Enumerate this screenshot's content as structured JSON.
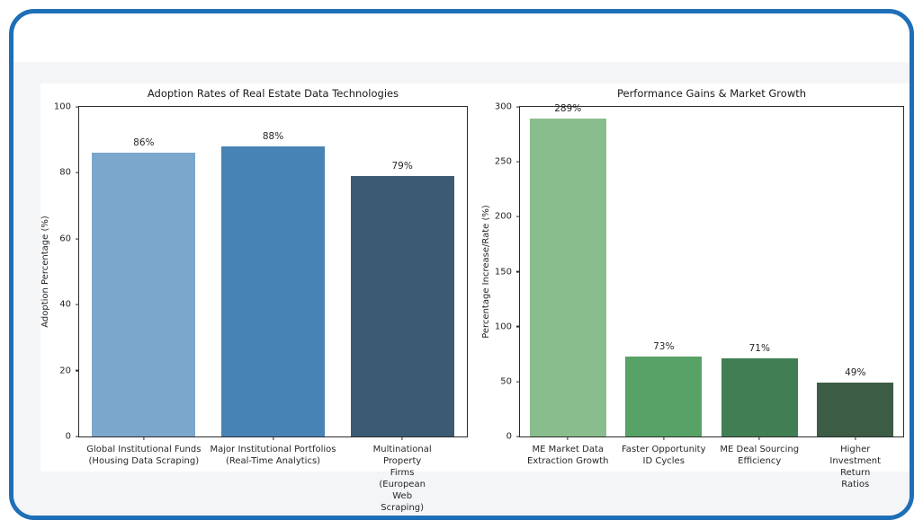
{
  "frame": {
    "border_color": "#1e6fb7",
    "panel_bg": "#f3f5f7",
    "figure_bg": "#ffffff"
  },
  "chart_data": [
    {
      "type": "bar",
      "title": "Adoption Rates of Real Estate Data Technologies",
      "xlabel": "",
      "ylabel": "Adoption Percentage (%)",
      "ylim": [
        0,
        100
      ],
      "yticks": [
        0,
        20,
        40,
        60,
        80,
        100
      ],
      "grid": false,
      "legend": false,
      "categories": [
        "Global Institutional Funds\n(Housing Data Scraping)",
        "Major Institutional Portfolios\n(Real-Time Analytics)",
        "Multinational Property Firms\n(European Web Scraping)"
      ],
      "values": [
        86,
        88,
        79
      ],
      "bar_labels": [
        "86%",
        "88%",
        "79%"
      ],
      "bar_colors": [
        "#7ba7cc",
        "#4784b5",
        "#3c5a72"
      ]
    },
    {
      "type": "bar",
      "title": "Performance Gains & Market Growth",
      "xlabel": "",
      "ylabel": "Percentage Increase/Rate (%)",
      "ylim": [
        0,
        300
      ],
      "yticks": [
        0,
        50,
        100,
        150,
        200,
        250,
        300
      ],
      "grid": false,
      "legend": false,
      "categories": [
        "ME Market Data\nExtraction Growth",
        "Faster Opportunity\nID Cycles",
        "ME Deal Sourcing\nEfficiency",
        "Higher Investment\nReturn Ratios"
      ],
      "values": [
        289,
        73,
        71,
        49
      ],
      "bar_labels": [
        "289%",
        "73%",
        "71%",
        "49%"
      ],
      "bar_colors": [
        "#8abd8e",
        "#57a266",
        "#417e53",
        "#3c5c45"
      ]
    }
  ]
}
